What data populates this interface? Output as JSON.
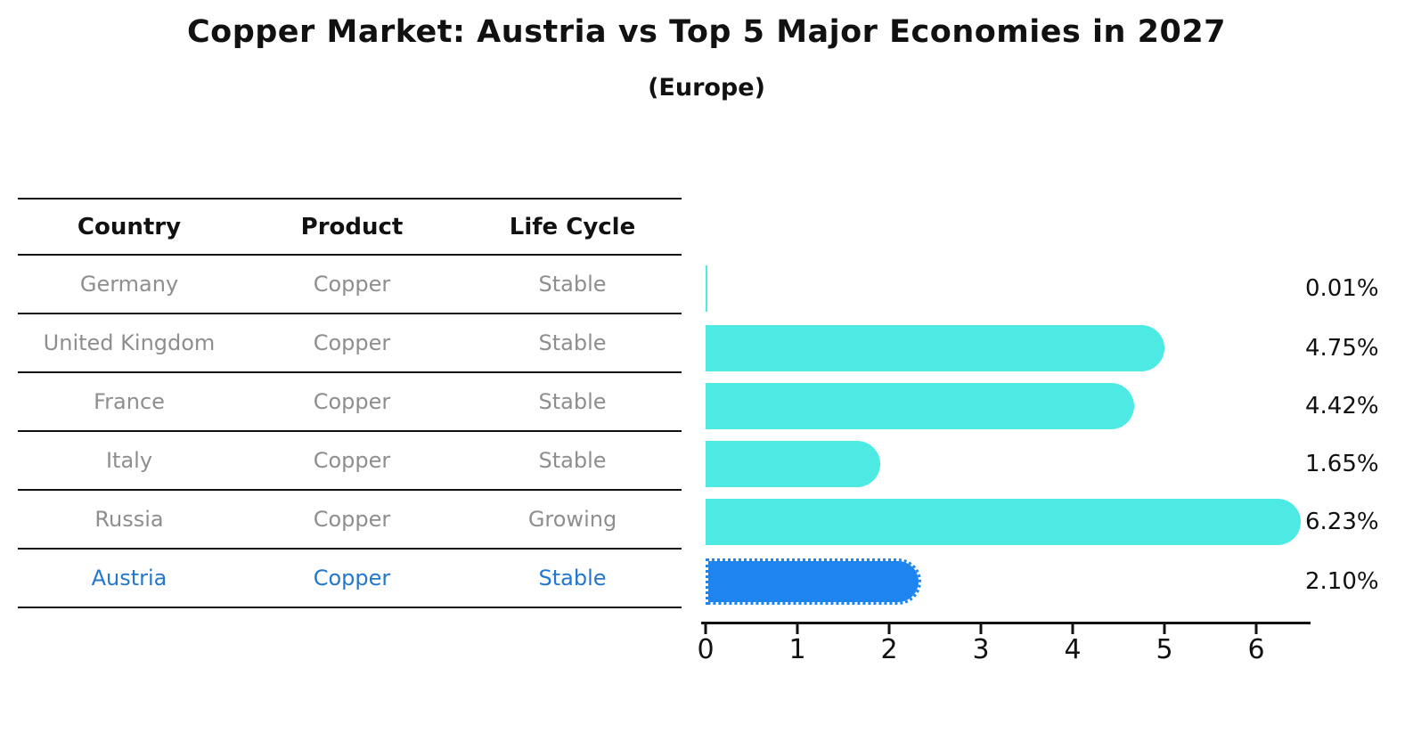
{
  "title": "Copper Market: Austria vs Top 5 Major Economies in 2027",
  "subtitle": "(Europe)",
  "colors": {
    "bar": "#4de9e3",
    "highlight_bar": "#1e85f0",
    "highlight_text": "#2277cf",
    "row_text": "#8e8e8e",
    "header_text": "#111111"
  },
  "table": {
    "headers": [
      "Country",
      "Product",
      "Life Cycle"
    ],
    "rows": [
      {
        "country": "Germany",
        "product": "Copper",
        "life_cycle": "Stable",
        "highlight": false
      },
      {
        "country": "United Kingdom",
        "product": "Copper",
        "life_cycle": "Stable",
        "highlight": false
      },
      {
        "country": "France",
        "product": "Copper",
        "life_cycle": "Stable",
        "highlight": false
      },
      {
        "country": "Italy",
        "product": "Copper",
        "life_cycle": "Stable",
        "highlight": false
      },
      {
        "country": "Russia",
        "product": "Copper",
        "life_cycle": "Growing",
        "highlight": false
      },
      {
        "country": "Austria",
        "product": "Copper",
        "life_cycle": "Stable",
        "highlight": true
      }
    ]
  },
  "chart_data": {
    "type": "bar",
    "orientation": "horizontal",
    "title": "Copper Market: Austria vs Top 5 Major Economies in 2027 (Europe)",
    "categories": [
      "Germany",
      "United Kingdom",
      "France",
      "Italy",
      "Russia",
      "Austria"
    ],
    "values": [
      0.01,
      4.75,
      4.42,
      1.65,
      6.23,
      2.1
    ],
    "value_labels": [
      "0.01%",
      "4.75%",
      "4.42%",
      "1.65%",
      "6.23%",
      "2.10%"
    ],
    "highlight_index": 5,
    "x_ticks": [
      0,
      1,
      2,
      3,
      4,
      5,
      6
    ],
    "xlim": [
      0,
      6.6
    ],
    "grid": false,
    "legend": false
  }
}
